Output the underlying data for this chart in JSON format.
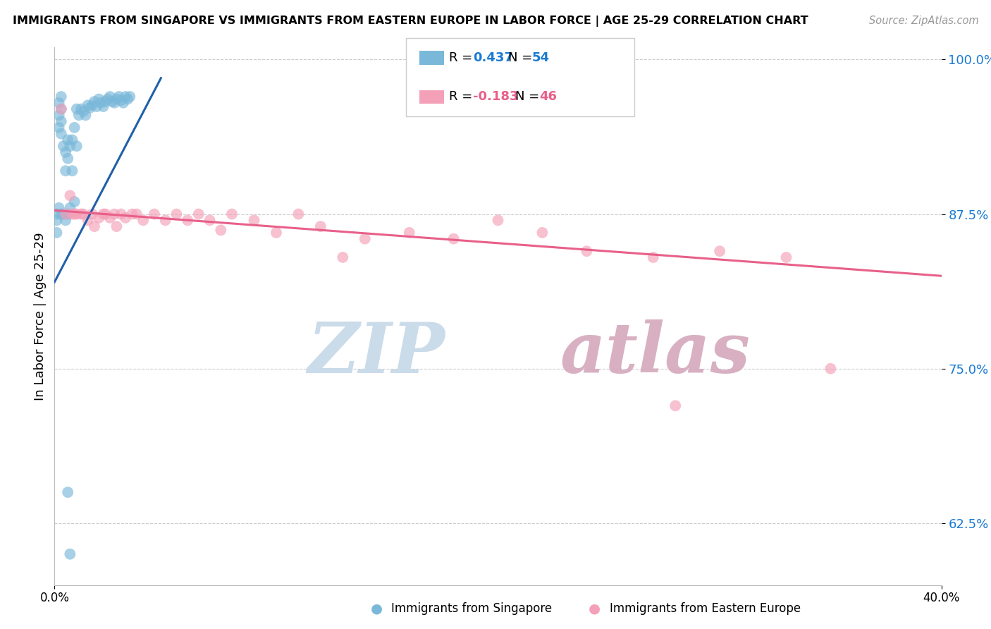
{
  "title": "IMMIGRANTS FROM SINGAPORE VS IMMIGRANTS FROM EASTERN EUROPE IN LABOR FORCE | AGE 25-29 CORRELATION CHART",
  "source": "Source: ZipAtlas.com",
  "ylabel": "In Labor Force | Age 25-29",
  "xlim": [
    0.0,
    0.4
  ],
  "ylim": [
    0.575,
    1.01
  ],
  "ytick_vals": [
    0.625,
    0.75,
    0.875,
    1.0
  ],
  "ytick_labels": [
    "62.5%",
    "75.0%",
    "87.5%",
    "100.0%"
  ],
  "singapore_R": 0.437,
  "singapore_N": 54,
  "eastern_europe_R": -0.183,
  "eastern_europe_N": 46,
  "blue_color": "#7ab8d9",
  "pink_color": "#f4a0b8",
  "blue_line_color": "#2060a8",
  "pink_line_color": "#e8608a",
  "watermark_zip_color": "#c5d8e8",
  "watermark_atlas_color": "#d4a8bc",
  "grid_color": "#cccccc",
  "sg_x": [
    0.001,
    0.001,
    0.001,
    0.002,
    0.002,
    0.002,
    0.002,
    0.003,
    0.003,
    0.003,
    0.003,
    0.003,
    0.004,
    0.004,
    0.005,
    0.005,
    0.005,
    0.006,
    0.006,
    0.006,
    0.007,
    0.007,
    0.008,
    0.008,
    0.009,
    0.009,
    0.01,
    0.01,
    0.011,
    0.012,
    0.013,
    0.014,
    0.015,
    0.016,
    0.017,
    0.018,
    0.019,
    0.02,
    0.021,
    0.022,
    0.023,
    0.024,
    0.025,
    0.026,
    0.027,
    0.028,
    0.029,
    0.03,
    0.031,
    0.032,
    0.033,
    0.034,
    0.006,
    0.007
  ],
  "sg_y": [
    0.875,
    0.87,
    0.86,
    0.965,
    0.955,
    0.945,
    0.88,
    0.97,
    0.96,
    0.95,
    0.94,
    0.875,
    0.93,
    0.875,
    0.925,
    0.91,
    0.87,
    0.935,
    0.92,
    0.875,
    0.93,
    0.88,
    0.935,
    0.91,
    0.945,
    0.885,
    0.96,
    0.93,
    0.955,
    0.96,
    0.958,
    0.955,
    0.963,
    0.961,
    0.963,
    0.966,
    0.962,
    0.968,
    0.965,
    0.962,
    0.966,
    0.968,
    0.97,
    0.966,
    0.965,
    0.968,
    0.97,
    0.967,
    0.965,
    0.97,
    0.968,
    0.97,
    0.65,
    0.6
  ],
  "ee_x": [
    0.003,
    0.005,
    0.007,
    0.008,
    0.009,
    0.01,
    0.012,
    0.013,
    0.015,
    0.017,
    0.018,
    0.02,
    0.022,
    0.023,
    0.025,
    0.027,
    0.028,
    0.03,
    0.032,
    0.035,
    0.037,
    0.04,
    0.045,
    0.05,
    0.055,
    0.06,
    0.065,
    0.07,
    0.075,
    0.08,
    0.09,
    0.1,
    0.11,
    0.12,
    0.13,
    0.14,
    0.16,
    0.18,
    0.2,
    0.22,
    0.24,
    0.27,
    0.3,
    0.33,
    0.28,
    0.35
  ],
  "ee_y": [
    0.96,
    0.875,
    0.89,
    0.875,
    0.875,
    0.875,
    0.875,
    0.875,
    0.87,
    0.875,
    0.865,
    0.872,
    0.875,
    0.875,
    0.872,
    0.875,
    0.865,
    0.875,
    0.872,
    0.875,
    0.875,
    0.87,
    0.875,
    0.87,
    0.875,
    0.87,
    0.875,
    0.87,
    0.862,
    0.875,
    0.87,
    0.86,
    0.875,
    0.865,
    0.84,
    0.855,
    0.86,
    0.855,
    0.87,
    0.86,
    0.845,
    0.84,
    0.845,
    0.84,
    0.72,
    0.75
  ],
  "sg_trend_x": [
    0.0,
    0.048
  ],
  "sg_trend_y": [
    0.82,
    0.985
  ],
  "ee_trend_x": [
    0.0,
    0.4
  ],
  "ee_trend_y": [
    0.878,
    0.825
  ]
}
